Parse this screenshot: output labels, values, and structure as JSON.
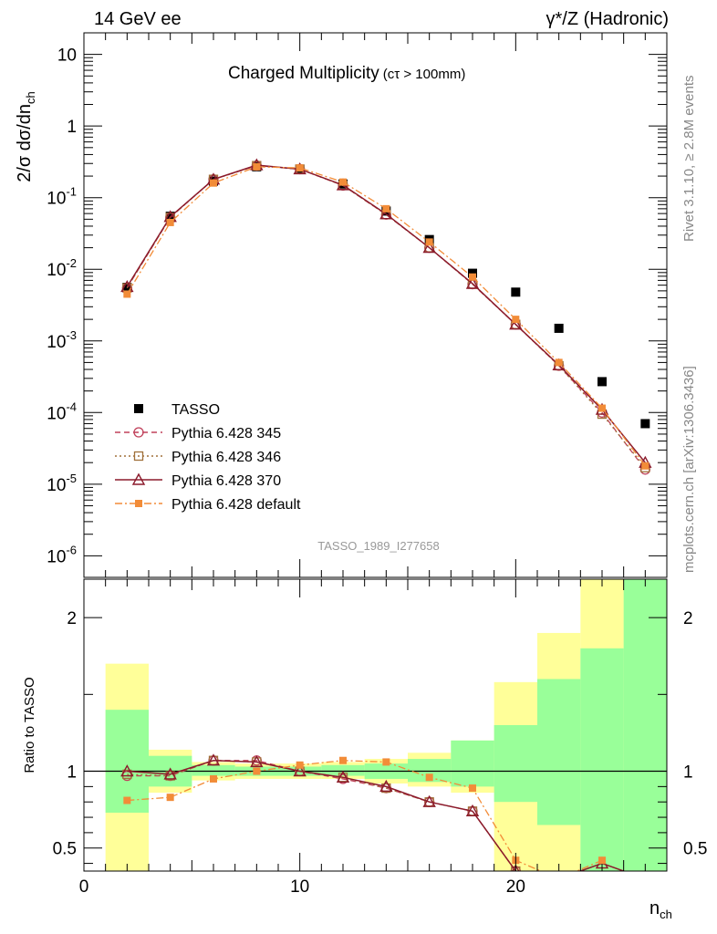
{
  "header": {
    "left": "14 GeV ee",
    "right": "γ*/Z (Hadronic)"
  },
  "side_labels": {
    "rivet": "Rivet 3.1.10, ≥ 2.8M events",
    "mcplots": "mcplots.cern.ch [arXiv:1306.3436]"
  },
  "chart_data": [
    {
      "type": "line",
      "title": "Charged Multiplicity",
      "title_suffix": "(cτ > 100mm)",
      "ylabel": "2/σ dσ/dn",
      "ylabel_sub": "ch",
      "yscale": "log",
      "ylim": [
        5e-07,
        20
      ],
      "xlim": [
        0,
        27
      ],
      "y_ticks": [
        1e-06,
        1e-05,
        0.0001,
        0.001,
        0.01,
        0.1,
        1,
        10
      ],
      "y_tick_labels": [
        "10^-6",
        "10^-5",
        "10^-4",
        "10^-3",
        "10^-2",
        "10^-1",
        "1",
        "10"
      ],
      "watermark": "TASSO_1989_I277658",
      "legend_position": "bottom-left",
      "series": [
        {
          "name": "TASSO",
          "style": "data",
          "color": "#000000",
          "marker": "square-filled",
          "x": [
            2,
            4,
            6,
            8,
            10,
            12,
            14,
            16,
            18,
            20,
            22,
            24,
            26
          ],
          "values": [
            0.0056,
            0.055,
            0.17,
            0.27,
            0.25,
            0.155,
            0.065,
            0.026,
            0.0088,
            0.0048,
            0.0015,
            0.00027,
            7e-05
          ]
        },
        {
          "name": "Pythia 6.428 345",
          "style": "dashed",
          "color": "#c0405a",
          "marker": "circle-open",
          "x": [
            2,
            4,
            6,
            8,
            10,
            12,
            14,
            16,
            18,
            20,
            22,
            24,
            26
          ],
          "values": [
            0.0055,
            0.053,
            0.18,
            0.28,
            0.25,
            0.148,
            0.058,
            0.02,
            0.0062,
            0.0017,
            0.00045,
            0.0001,
            1.6e-05
          ]
        },
        {
          "name": "Pythia 6.428 346",
          "style": "dotted",
          "color": "#a0703a",
          "marker": "square-open",
          "x": [
            2,
            4,
            6,
            8,
            10,
            12,
            14,
            16,
            18,
            20,
            22,
            24,
            26
          ],
          "values": [
            0.0055,
            0.053,
            0.18,
            0.28,
            0.25,
            0.148,
            0.058,
            0.02,
            0.0062,
            0.0017,
            0.00045,
            9.5e-05,
            1.7e-05
          ]
        },
        {
          "name": "Pythia 6.428 370",
          "style": "solid",
          "color": "#8b1a2b",
          "marker": "triangle-open",
          "x": [
            2,
            4,
            6,
            8,
            10,
            12,
            14,
            16,
            18,
            20,
            22,
            24,
            26
          ],
          "values": [
            0.0057,
            0.054,
            0.18,
            0.285,
            0.25,
            0.15,
            0.059,
            0.02,
            0.0063,
            0.0017,
            0.00046,
            0.00011,
            2e-05
          ]
        },
        {
          "name": "Pythia 6.428 default",
          "style": "dashdot",
          "color": "#f28c38",
          "marker": "square-filled-small",
          "x": [
            2,
            4,
            6,
            8,
            10,
            12,
            14,
            16,
            18,
            20,
            22,
            24,
            26
          ],
          "values": [
            0.0045,
            0.045,
            0.16,
            0.27,
            0.26,
            0.165,
            0.07,
            0.024,
            0.0078,
            0.002,
            0.0005,
            0.000115,
            1.8e-05
          ]
        }
      ]
    },
    {
      "type": "line",
      "ylabel": "Ratio to TASSO",
      "xlabel": "n",
      "xlabel_sub": "ch",
      "xlim": [
        0,
        27
      ],
      "ylim": [
        0.35,
        2.25
      ],
      "x_ticks": [
        0,
        10,
        20
      ],
      "x_tick_labels": [
        "0",
        "10",
        "20"
      ],
      "y_ticks": [
        0.5,
        1,
        2
      ],
      "y_tick_labels": [
        "0.5",
        "1",
        "2"
      ],
      "bands": {
        "bins": [
          [
            1,
            3
          ],
          [
            3,
            5
          ],
          [
            5,
            7
          ],
          [
            7,
            9
          ],
          [
            9,
            11
          ],
          [
            11,
            13
          ],
          [
            13,
            15
          ],
          [
            15,
            17
          ],
          [
            17,
            19
          ],
          [
            19,
            21
          ],
          [
            21,
            23
          ],
          [
            23,
            25
          ],
          [
            25,
            27
          ]
        ],
        "yellow_low": [
          0.0,
          0.86,
          0.94,
          0.95,
          0.95,
          0.95,
          0.92,
          0.9,
          0.86,
          0.0,
          0.0,
          0.0,
          0.0
        ],
        "yellow_high": [
          1.7,
          1.14,
          1.06,
          1.05,
          1.05,
          1.06,
          1.08,
          1.12,
          1.2,
          1.58,
          1.9,
          2.4,
          2.4
        ],
        "green_low": [
          0.73,
          0.9,
          0.97,
          0.97,
          0.97,
          0.97,
          0.95,
          0.93,
          0.9,
          0.8,
          0.65,
          0.0,
          0.0
        ],
        "green_high": [
          1.4,
          1.1,
          1.04,
          1.03,
          1.03,
          1.04,
          1.05,
          1.08,
          1.2,
          1.3,
          1.6,
          1.8,
          2.4
        ],
        "colors": {
          "yellow": "#ffff99",
          "green": "#99ff99"
        }
      },
      "series": [
        {
          "name": "Pythia 6.428 345",
          "style": "dashed",
          "color": "#c0405a",
          "marker": "circle-open",
          "x": [
            2,
            4,
            6,
            8,
            10,
            12,
            14,
            16,
            18,
            20,
            22
          ],
          "values": [
            0.97,
            0.97,
            1.07,
            1.07,
            1.0,
            0.95,
            0.89,
            0.8,
            0.74,
            0.35,
            0.3
          ]
        },
        {
          "name": "Pythia 6.428 346",
          "style": "dotted",
          "color": "#a0703a",
          "marker": "square-open",
          "x": [
            2,
            4,
            6,
            8,
            10,
            12,
            14,
            16,
            18,
            20,
            22
          ],
          "values": [
            0.98,
            0.97,
            1.07,
            1.06,
            1.0,
            0.96,
            0.89,
            0.8,
            0.74,
            0.35,
            0.3
          ]
        },
        {
          "name": "Pythia 6.428 370",
          "style": "solid",
          "color": "#8b1a2b",
          "marker": "triangle-open",
          "x": [
            2,
            4,
            6,
            8,
            10,
            12,
            14,
            16,
            18,
            20,
            22,
            24,
            26
          ],
          "values": [
            1.0,
            0.98,
            1.07,
            1.06,
            1.0,
            0.96,
            0.9,
            0.8,
            0.74,
            0.35,
            0.3,
            0.4,
            0.3
          ]
        },
        {
          "name": "Pythia 6.428 default",
          "style": "dashdot",
          "color": "#f28c38",
          "marker": "square-filled-small",
          "x": [
            2,
            4,
            6,
            8,
            10,
            12,
            14,
            16,
            18,
            20,
            22,
            24
          ],
          "values": [
            0.81,
            0.83,
            0.95,
            1.0,
            1.04,
            1.07,
            1.06,
            0.96,
            0.89,
            0.42,
            0.3,
            0.42
          ]
        }
      ]
    }
  ]
}
